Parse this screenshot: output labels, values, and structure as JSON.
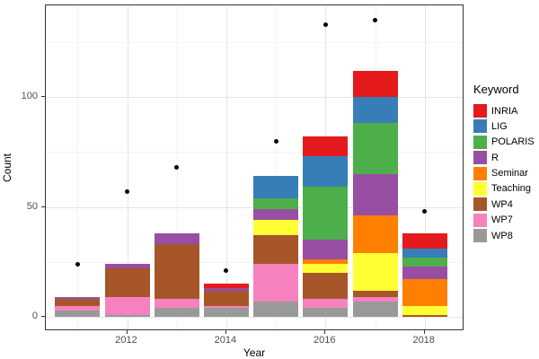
{
  "figure": {
    "background": "#ffffff",
    "panel_border_color": "#333333",
    "grid_major_color": "#e5e5e5",
    "grid_minor_color": "#f3f3f3",
    "point_color": "#000000"
  },
  "axes": {
    "x": {
      "title": "Year",
      "major_ticks": [
        2012,
        2014,
        2016,
        2018
      ],
      "minor_ticks": [
        2011,
        2013,
        2015,
        2017
      ]
    },
    "y": {
      "title": "Count",
      "major_ticks": [
        0,
        50,
        100
      ],
      "minor_ticks": [
        25,
        75,
        125
      ]
    }
  },
  "legend": {
    "title": "Keyword",
    "items": [
      {
        "label": "INRIA",
        "color": "#e41a1c"
      },
      {
        "label": "LIG",
        "color": "#377eb8"
      },
      {
        "label": "POLARIS",
        "color": "#4daf4a"
      },
      {
        "label": "R",
        "color": "#984ea3"
      },
      {
        "label": "Seminar",
        "color": "#ff7f00"
      },
      {
        "label": "Teaching",
        "color": "#ffff33"
      },
      {
        "label": "WP4",
        "color": "#a65628"
      },
      {
        "label": "WP7",
        "color": "#f781bf"
      },
      {
        "label": "WP8",
        "color": "#999999"
      }
    ]
  },
  "chart_data": {
    "type": "bar",
    "stacked": true,
    "title": "",
    "xlabel": "Year",
    "ylabel": "Count",
    "ylim": [
      -6.5,
      141.5
    ],
    "xlim": [
      2010.1,
      2018.9
    ],
    "grid": true,
    "legend_position": "right",
    "categories": [
      2011,
      2012,
      2013,
      2014,
      2015,
      2016,
      2017,
      2018
    ],
    "series": [
      {
        "name": "INRIA",
        "color": "#e41a1c",
        "values": [
          0,
          0,
          0,
          2,
          0,
          9,
          12,
          7
        ]
      },
      {
        "name": "LIG",
        "color": "#377eb8",
        "values": [
          0,
          0,
          0,
          0,
          10,
          14,
          12,
          4
        ]
      },
      {
        "name": "POLARIS",
        "color": "#4daf4a",
        "values": [
          0,
          0,
          0,
          0,
          5,
          24,
          23,
          4
        ]
      },
      {
        "name": "R",
        "color": "#984ea3",
        "values": [
          1,
          2,
          5,
          1,
          5,
          9,
          19,
          6
        ]
      },
      {
        "name": "Seminar",
        "color": "#ff7f00",
        "values": [
          0,
          0,
          0,
          0,
          0,
          2,
          17,
          12
        ]
      },
      {
        "name": "Teaching",
        "color": "#ffff33",
        "values": [
          0,
          0,
          0,
          0,
          7,
          4,
          17,
          4
        ]
      },
      {
        "name": "WP4",
        "color": "#a65628",
        "values": [
          3,
          13,
          25,
          7,
          13,
          12,
          3,
          1
        ]
      },
      {
        "name": "WP7",
        "color": "#f781bf",
        "values": [
          2,
          8,
          4,
          1,
          17,
          4,
          2,
          0
        ]
      },
      {
        "name": "WP8",
        "color": "#999999",
        "values": [
          3,
          1,
          4,
          4,
          7,
          4,
          7,
          0
        ]
      }
    ],
    "points": {
      "name": "yearly-count-points",
      "color": "#000000",
      "x": [
        2011,
        2012,
        2013,
        2014,
        2015,
        2016,
        2017,
        2018
      ],
      "y": [
        24,
        57,
        68,
        21,
        80,
        133,
        135,
        48
      ]
    }
  }
}
